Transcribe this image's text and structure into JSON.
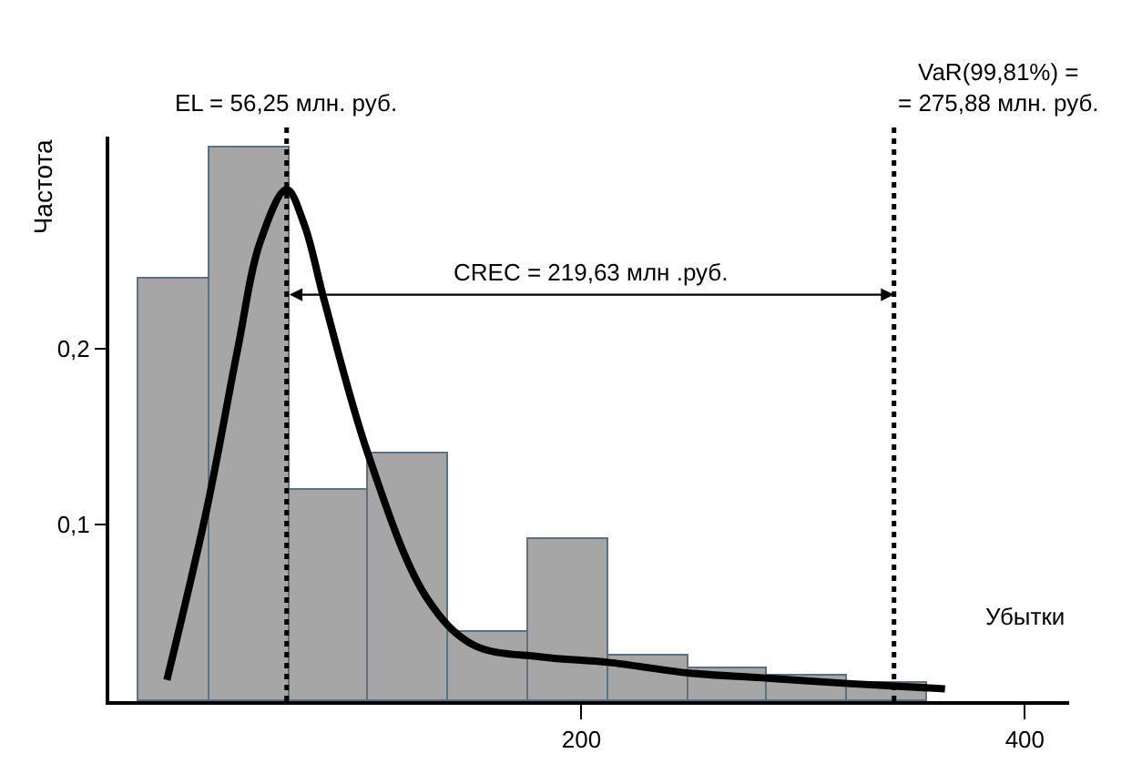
{
  "chart_data": {
    "type": "histogram",
    "xlabel": "Убытки",
    "ylabel": "Частота",
    "xlim": [
      -13,
      420
    ],
    "ylim": [
      0,
      0.32
    ],
    "xticks": [
      200,
      400
    ],
    "yticks": [
      {
        "value": 0.1,
        "label": "0,1"
      },
      {
        "value": 0.2,
        "label": "0,2"
      }
    ],
    "series": [
      {
        "color": "#a6a6a6",
        "bins": [
          0,
          32,
          68,
          104,
          140,
          176,
          212,
          248,
          284,
          320,
          356
        ],
        "values": [
          0.24,
          0.314,
          0.12,
          0.14,
          0.039,
          0.092,
          0.026,
          0.019,
          0.014,
          0.01
        ]
      },
      {
        "type": "line",
        "color": "#000000",
        "x": [
          13,
          31,
          45,
          55,
          67,
          75,
          84,
          104,
          130,
          151,
          182,
          212,
          248,
          284,
          320,
          364
        ],
        "values": [
          0.012,
          0.109,
          0.2,
          0.26,
          0.29,
          0.27,
          0.227,
          0.139,
          0.059,
          0.032,
          0.025,
          0.022,
          0.016,
          0.013,
          0.01,
          0.007
        ]
      }
    ],
    "ref_lines": [
      {
        "axis": "x",
        "value": 67,
        "line_style": "dotted",
        "color": "#000000"
      },
      {
        "axis": "x",
        "value": 341,
        "line_style": "dotted",
        "color": "#000000"
      }
    ],
    "annotations": [
      "EL = 56,25 млн. руб.",
      "VaR(99,81%) =\n= 275,88 млн. руб.",
      "CREC = 219,63 млн .руб."
    ]
  }
}
